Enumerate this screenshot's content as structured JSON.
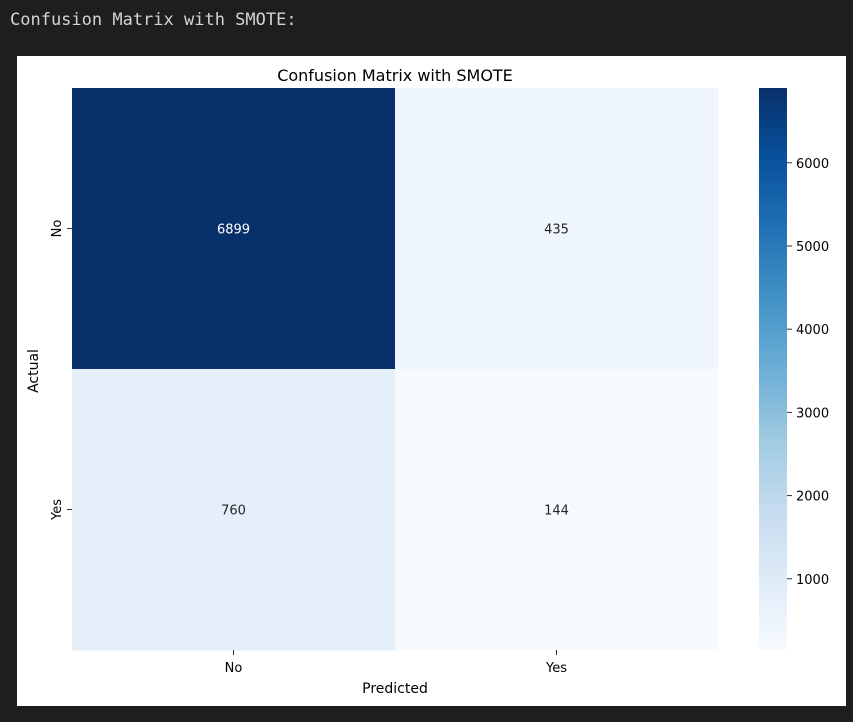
{
  "output_header": "Confusion Matrix with SMOTE:",
  "chart_data": {
    "type": "heatmap",
    "title": "Confusion Matrix with SMOTE",
    "xlabel": "Predicted",
    "ylabel": "Actual",
    "x_categories": [
      "No",
      "Yes"
    ],
    "y_categories": [
      "No",
      "Yes"
    ],
    "values": [
      [
        6899,
        435
      ],
      [
        760,
        144
      ]
    ],
    "colormap": "Blues",
    "colorbar": {
      "min": 144,
      "max": 6899,
      "ticks": [
        1000,
        2000,
        3000,
        4000,
        5000,
        6000
      ],
      "tick_labels": [
        "1000",
        "2000",
        "3000",
        "4000",
        "5000",
        "6000"
      ]
    },
    "annotation_colors": {
      "dark": "#ffffff",
      "light": "#262626"
    }
  }
}
